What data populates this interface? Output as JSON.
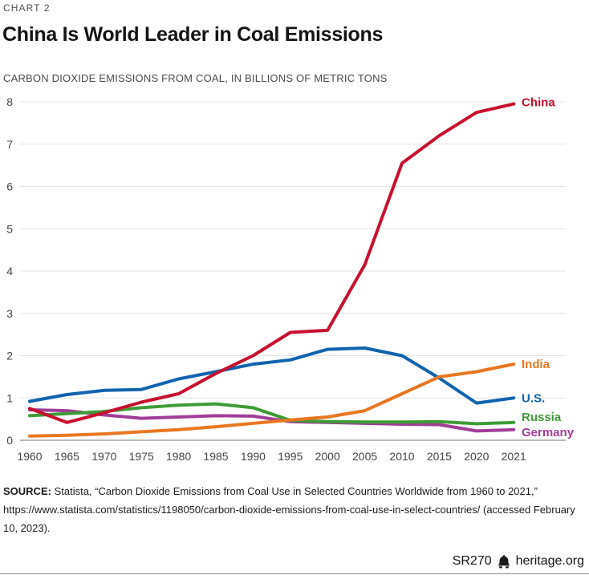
{
  "kicker": "CHART 2",
  "title": "China Is World Leader in Coal Emissions",
  "subtitle": "CARBON DIOXIDE EMISSIONS FROM COAL, IN BILLIONS OF METRIC TONS",
  "chart_data": {
    "type": "line",
    "title": "China Is World Leader in Coal Emissions",
    "ylabel": "Carbon dioxide emissions from coal, billions of metric tons",
    "xlabel": "",
    "categories": [
      "1960",
      "1965",
      "1970",
      "1975",
      "1980",
      "1985",
      "1990",
      "1995",
      "2000",
      "2005",
      "2010",
      "2015",
      "2020",
      "2021"
    ],
    "ylim": [
      0,
      8
    ],
    "yticks": [
      0,
      1,
      2,
      3,
      4,
      5,
      6,
      7,
      8
    ],
    "grid": "horizontal",
    "legend_position": "right-end-of-line",
    "series": [
      {
        "name": "China",
        "color": "#C8102E",
        "values": [
          0.75,
          0.42,
          0.65,
          0.9,
          1.1,
          1.58,
          2.0,
          2.55,
          2.6,
          4.15,
          6.55,
          7.2,
          7.75,
          7.95
        ],
        "label_dy": -2
      },
      {
        "name": "India",
        "color": "#E87722",
        "values": [
          0.1,
          0.12,
          0.15,
          0.2,
          0.25,
          0.32,
          0.4,
          0.48,
          0.55,
          0.7,
          1.1,
          1.5,
          1.62,
          1.8
        ],
        "label_dy": 0
      },
      {
        "name": "U.S.",
        "color": "#1063AE",
        "values": [
          0.92,
          1.08,
          1.18,
          1.2,
          1.45,
          1.62,
          1.8,
          1.9,
          2.15,
          2.18,
          2.0,
          1.47,
          0.88,
          1.0
        ],
        "label_dy": 0
      },
      {
        "name": "Russia",
        "color": "#3E9B35",
        "values": [
          0.58,
          0.63,
          0.68,
          0.77,
          0.83,
          0.86,
          0.77,
          0.47,
          0.44,
          0.43,
          0.43,
          0.44,
          0.39,
          0.42
        ],
        "label_dy": -7
      },
      {
        "name": "Germany",
        "color": "#A13D97",
        "values": [
          0.72,
          0.7,
          0.6,
          0.52,
          0.55,
          0.58,
          0.57,
          0.44,
          0.42,
          0.4,
          0.38,
          0.37,
          0.22,
          0.25
        ],
        "label_dy": 3
      }
    ],
    "axis_color": "#8f8f8f",
    "gridline_color": "#e4e4e4",
    "tick_label_color": "#454545"
  },
  "source": {
    "prefix": "SOURCE:",
    "text": " Statista, “Carbon Dioxide Emissions from Coal Use in Selected Countries Worldwide from 1960 to 2021,” https://www.statista.com/statistics/1198050/carbon-dioxide-emissions-from-coal-use-in-select-countries/ (accessed February 10, 2023)."
  },
  "footer": {
    "report_id": "SR270",
    "site": "heritage.org",
    "logo": "liberty-bell-icon"
  }
}
